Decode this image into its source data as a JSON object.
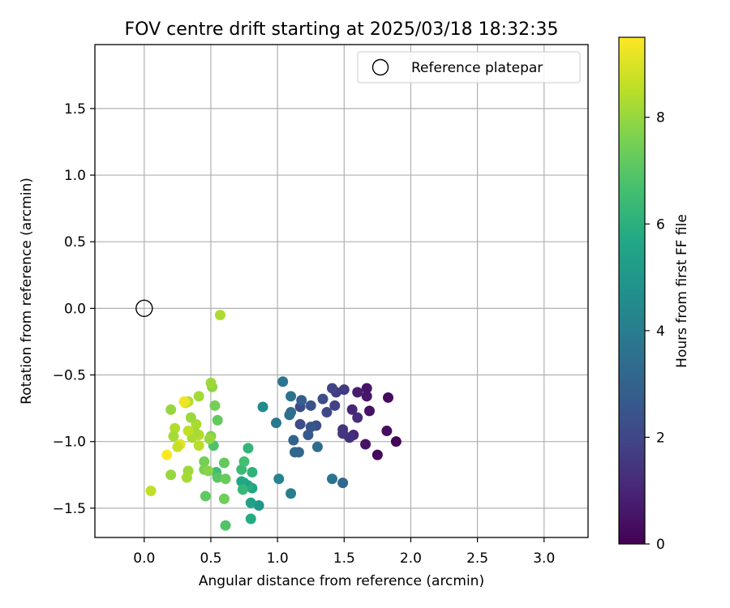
{
  "chart_data": {
    "type": "scatter",
    "title": "FOV centre drift starting at 2025/03/18 18:32:35",
    "xlabel": "Angular distance from reference (arcmin)",
    "ylabel": "Rotation from reference (arcmin)",
    "xlim": [
      -0.37,
      3.33
    ],
    "ylim": [
      -1.72,
      1.98
    ],
    "xticks": [
      0.0,
      0.5,
      1.0,
      1.5,
      2.0,
      2.5,
      3.0
    ],
    "xtick_labels": [
      "0.0",
      "0.5",
      "1.0",
      "1.5",
      "2.0",
      "2.5",
      "3.0"
    ],
    "yticks": [
      -1.5,
      -1.0,
      -0.5,
      0.0,
      0.5,
      1.0,
      1.5
    ],
    "ytick_labels": [
      "−1.5",
      "−1.0",
      "−0.5",
      "0.0",
      "0.5",
      "1.0",
      "1.5"
    ],
    "grid": true,
    "legend": {
      "position": "top-right",
      "entries": [
        "Reference platepar"
      ]
    },
    "reference": {
      "x": 0.0,
      "y": 0.0
    },
    "colorbar": {
      "label": "Hours from first FF file",
      "colormap": "viridis",
      "range": [
        0,
        9.5
      ],
      "ticks": [
        0,
        2,
        4,
        6,
        8
      ],
      "tick_labels": [
        "0",
        "2",
        "4",
        "6",
        "8"
      ]
    },
    "points": [
      [
        1.89,
        -1.0,
        0.1
      ],
      [
        1.75,
        -1.1,
        0.2
      ],
      [
        1.82,
        -0.92,
        0.35
      ],
      [
        1.83,
        -0.67,
        0.3
      ],
      [
        1.66,
        -1.02,
        0.5
      ],
      [
        1.69,
        -0.77,
        0.45
      ],
      [
        1.67,
        -0.6,
        0.55
      ],
      [
        1.67,
        -0.66,
        0.6
      ],
      [
        1.6,
        -0.63,
        0.75
      ],
      [
        1.56,
        -0.76,
        1.0
      ],
      [
        1.6,
        -0.82,
        1.2
      ],
      [
        1.57,
        -0.95,
        1.1
      ],
      [
        1.54,
        -0.97,
        1.3
      ],
      [
        1.49,
        -0.91,
        1.4
      ],
      [
        1.49,
        -0.94,
        1.5
      ],
      [
        1.5,
        -0.61,
        1.6
      ],
      [
        1.44,
        -0.63,
        1.7
      ],
      [
        1.41,
        -0.6,
        1.9
      ],
      [
        1.43,
        -0.73,
        1.8
      ],
      [
        1.37,
        -0.78,
        2.0
      ],
      [
        1.34,
        -0.68,
        2.2
      ],
      [
        1.29,
        -0.88,
        2.3
      ],
      [
        1.25,
        -0.73,
        2.4
      ],
      [
        1.23,
        -0.95,
        2.6
      ],
      [
        1.25,
        -0.89,
        2.5
      ],
      [
        1.17,
        -0.87,
        2.2
      ],
      [
        1.17,
        -0.74,
        2.1
      ],
      [
        1.18,
        -0.69,
        2.8
      ],
      [
        1.12,
        -0.99,
        3.0
      ],
      [
        1.13,
        -1.08,
        3.2
      ],
      [
        1.16,
        -1.08,
        3.1
      ],
      [
        1.1,
        -0.78,
        3.3
      ],
      [
        1.09,
        -0.8,
        3.5
      ],
      [
        1.1,
        -0.66,
        3.6
      ],
      [
        1.04,
        -0.55,
        3.7
      ],
      [
        0.99,
        -0.86,
        3.8
      ],
      [
        1.3,
        -1.04,
        3.4
      ],
      [
        1.41,
        -1.28,
        3.6
      ],
      [
        1.49,
        -1.31,
        3.2
      ],
      [
        1.1,
        -1.39,
        4.0
      ],
      [
        1.01,
        -1.28,
        4.2
      ],
      [
        0.89,
        -0.74,
        4.5
      ],
      [
        0.86,
        -1.48,
        5.0
      ],
      [
        0.8,
        -1.46,
        5.4
      ],
      [
        0.8,
        -1.58,
        5.8
      ],
      [
        0.81,
        -1.35,
        5.6
      ],
      [
        0.78,
        -1.33,
        5.9
      ],
      [
        0.81,
        -1.23,
        6.1
      ],
      [
        0.75,
        -1.31,
        5.5
      ],
      [
        0.73,
        -1.3,
        5.7
      ],
      [
        0.74,
        -1.36,
        6.3
      ],
      [
        0.73,
        -1.21,
        6.4
      ],
      [
        0.75,
        -1.15,
        6.6
      ],
      [
        0.78,
        -1.05,
        6.2
      ],
      [
        0.52,
        -1.03,
        6.8
      ],
      [
        0.54,
        -1.23,
        6.5
      ],
      [
        0.55,
        -1.27,
        7.0
      ],
      [
        0.6,
        -1.16,
        7.2
      ],
      [
        0.61,
        -1.28,
        7.3
      ],
      [
        0.6,
        -1.43,
        7.4
      ],
      [
        0.61,
        -1.63,
        6.9
      ],
      [
        0.46,
        -1.41,
        7.1
      ],
      [
        0.45,
        -1.15,
        7.5
      ],
      [
        0.45,
        -1.21,
        7.6
      ],
      [
        0.48,
        -1.22,
        7.8
      ],
      [
        0.5,
        -0.96,
        7.7
      ],
      [
        0.49,
        -0.98,
        8.0
      ],
      [
        0.55,
        -0.84,
        7.2
      ],
      [
        0.53,
        -0.73,
        7.5
      ],
      [
        0.51,
        -0.59,
        7.9
      ],
      [
        0.5,
        -0.56,
        8.1
      ],
      [
        0.41,
        -0.66,
        8.2
      ],
      [
        0.39,
        -0.87,
        8.3
      ],
      [
        0.41,
        -0.95,
        8.4
      ],
      [
        0.41,
        -1.03,
        8.5
      ],
      [
        0.38,
        -0.93,
        8.2
      ],
      [
        0.36,
        -0.97,
        8.3
      ],
      [
        0.33,
        -0.92,
        8.6
      ],
      [
        0.35,
        -0.82,
        8.1
      ],
      [
        0.33,
        -0.7,
        8.4
      ],
      [
        0.31,
        -0.71,
        8.8
      ],
      [
        0.27,
        -1.02,
        9.1
      ],
      [
        0.25,
        -1.04,
        8.7
      ],
      [
        0.23,
        -0.9,
        8.4
      ],
      [
        0.22,
        -0.96,
        8.2
      ],
      [
        0.2,
        -0.76,
        8.0
      ],
      [
        0.2,
        -1.25,
        8.0
      ],
      [
        0.33,
        -1.22,
        8.1
      ],
      [
        0.32,
        -1.27,
        8.2
      ],
      [
        0.17,
        -1.1,
        9.5
      ],
      [
        0.3,
        -0.7,
        9.3
      ],
      [
        0.05,
        -1.37,
        8.6
      ],
      [
        0.57,
        -0.05,
        8.3
      ]
    ]
  }
}
